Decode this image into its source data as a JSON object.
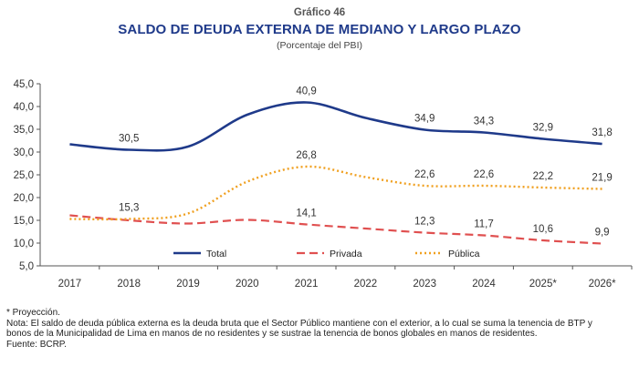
{
  "header": {
    "label": "Gráfico 46",
    "title": "SALDO DE DEUDA EXTERNA DE MEDIANO Y LARGO PLAZO",
    "subtitle": "(Porcentaje del PBI)"
  },
  "chart_data": {
    "type": "line",
    "categories": [
      "2017",
      "2018",
      "2019",
      "2020",
      "2021",
      "2022",
      "2023",
      "2024",
      "2025*",
      "2026*"
    ],
    "ylim": [
      5.0,
      45.0
    ],
    "yticks": [
      "5,0",
      "10,0",
      "15,0",
      "20,0",
      "25,0",
      "30,0",
      "35,0",
      "40,0",
      "45,0"
    ],
    "grid": false,
    "legend_position": "bottom-center",
    "series": [
      {
        "name": "Total",
        "color": "#1f3a8a",
        "style": "solid",
        "values": [
          31.7,
          30.5,
          31.2,
          38.2,
          40.9,
          37.5,
          34.9,
          34.3,
          32.9,
          31.8
        ],
        "labels": [
          "",
          "30,5",
          "",
          "",
          "40,9",
          "",
          "34,9",
          "34,3",
          "32,9",
          "31,8"
        ]
      },
      {
        "name": "Privada",
        "color": "#e05050",
        "style": "dashed",
        "values": [
          16.1,
          15.0,
          14.3,
          15.1,
          14.1,
          13.2,
          12.3,
          11.7,
          10.6,
          9.9
        ],
        "labels": [
          "",
          "",
          "",
          "",
          "14,1",
          "",
          "12,3",
          "11,7",
          "10,6",
          "9,9"
        ]
      },
      {
        "name": "Pública",
        "color": "#f0a020",
        "style": "dotted",
        "values": [
          15.3,
          15.3,
          16.5,
          23.5,
          26.8,
          24.5,
          22.6,
          22.6,
          22.2,
          21.9
        ],
        "labels": [
          "",
          "15,3",
          "",
          "",
          "26,8",
          "",
          "22,6",
          "22,6",
          "22,2",
          "21,9"
        ]
      }
    ]
  },
  "notes": {
    "projection": "* Proyección.",
    "note_line1": "Nota: El saldo de deuda pública externa es la deuda bruta que el Sector Público mantiene con el exterior, a lo cual se suma la tenencia de BTP y",
    "note_line2": "bonos de la Municipalidad de Lima en manos de no residentes y se sustrae la tenencia de bonos globales en manos de residentes.",
    "source": "Fuente: BCRP."
  }
}
